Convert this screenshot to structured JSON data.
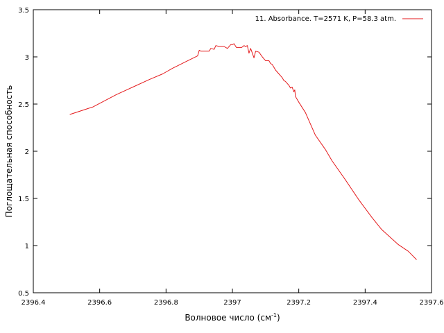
{
  "chart_data": {
    "type": "line",
    "title": "",
    "xlabel": "Волновое число (см",
    "xlabel_sup": "-1",
    "xlabel_suffix": ")",
    "ylabel": "Поглощательная способность",
    "xlim": [
      2396.4,
      2397.6
    ],
    "ylim": [
      0.5,
      3.5
    ],
    "xticks": [
      "2396.4",
      "2396.6",
      "2396.8",
      "2397",
      "2397.2",
      "2397.4",
      "2397.6"
    ],
    "yticks": [
      "0.5",
      "1",
      "1.5",
      "2",
      "2.5",
      "3",
      "3.5"
    ],
    "grid": false,
    "legend_position": "top-right",
    "series": [
      {
        "name": "11. Absorbance. T=2571 K, P=58.3 atm.",
        "color": "#e41a1c",
        "x": [
          2396.51,
          2396.58,
          2396.65,
          2396.7,
          2396.75,
          2396.79,
          2396.82,
          2396.86,
          2396.895,
          2396.9,
          2396.905,
          2396.92,
          2396.93,
          2396.935,
          2396.945,
          2396.95,
          2396.96,
          2396.975,
          2396.985,
          2396.995,
          2397.0,
          2397.005,
          2397.012,
          2397.02,
          2397.028,
          2397.035,
          2397.04,
          2397.045,
          2397.05,
          2397.055,
          2397.06,
          2397.065,
          2397.07,
          2397.08,
          2397.09,
          2397.1,
          2397.11,
          2397.115,
          2397.12,
          2397.13,
          2397.14,
          2397.145,
          2397.15,
          2397.155,
          2397.16,
          2397.17,
          2397.175,
          2397.18,
          2397.185,
          2397.188,
          2397.19,
          2397.2,
          2397.22,
          2397.25,
          2397.28,
          2397.3,
          2397.34,
          2397.38,
          2397.42,
          2397.45,
          2397.5,
          2397.53,
          2397.555
        ],
        "y": [
          2.39,
          2.47,
          2.6,
          2.68,
          2.76,
          2.82,
          2.88,
          2.95,
          3.01,
          3.07,
          3.06,
          3.06,
          3.06,
          3.09,
          3.08,
          3.12,
          3.11,
          3.11,
          3.09,
          3.13,
          3.13,
          3.14,
          3.1,
          3.1,
          3.1,
          3.12,
          3.11,
          3.12,
          3.04,
          3.09,
          3.04,
          2.99,
          3.06,
          3.05,
          3.0,
          2.96,
          2.96,
          2.93,
          2.92,
          2.86,
          2.82,
          2.8,
          2.78,
          2.75,
          2.74,
          2.7,
          2.67,
          2.68,
          2.63,
          2.65,
          2.58,
          2.52,
          2.41,
          2.17,
          2.02,
          1.9,
          1.7,
          1.49,
          1.3,
          1.17,
          1.01,
          0.94,
          0.85
        ]
      }
    ]
  }
}
